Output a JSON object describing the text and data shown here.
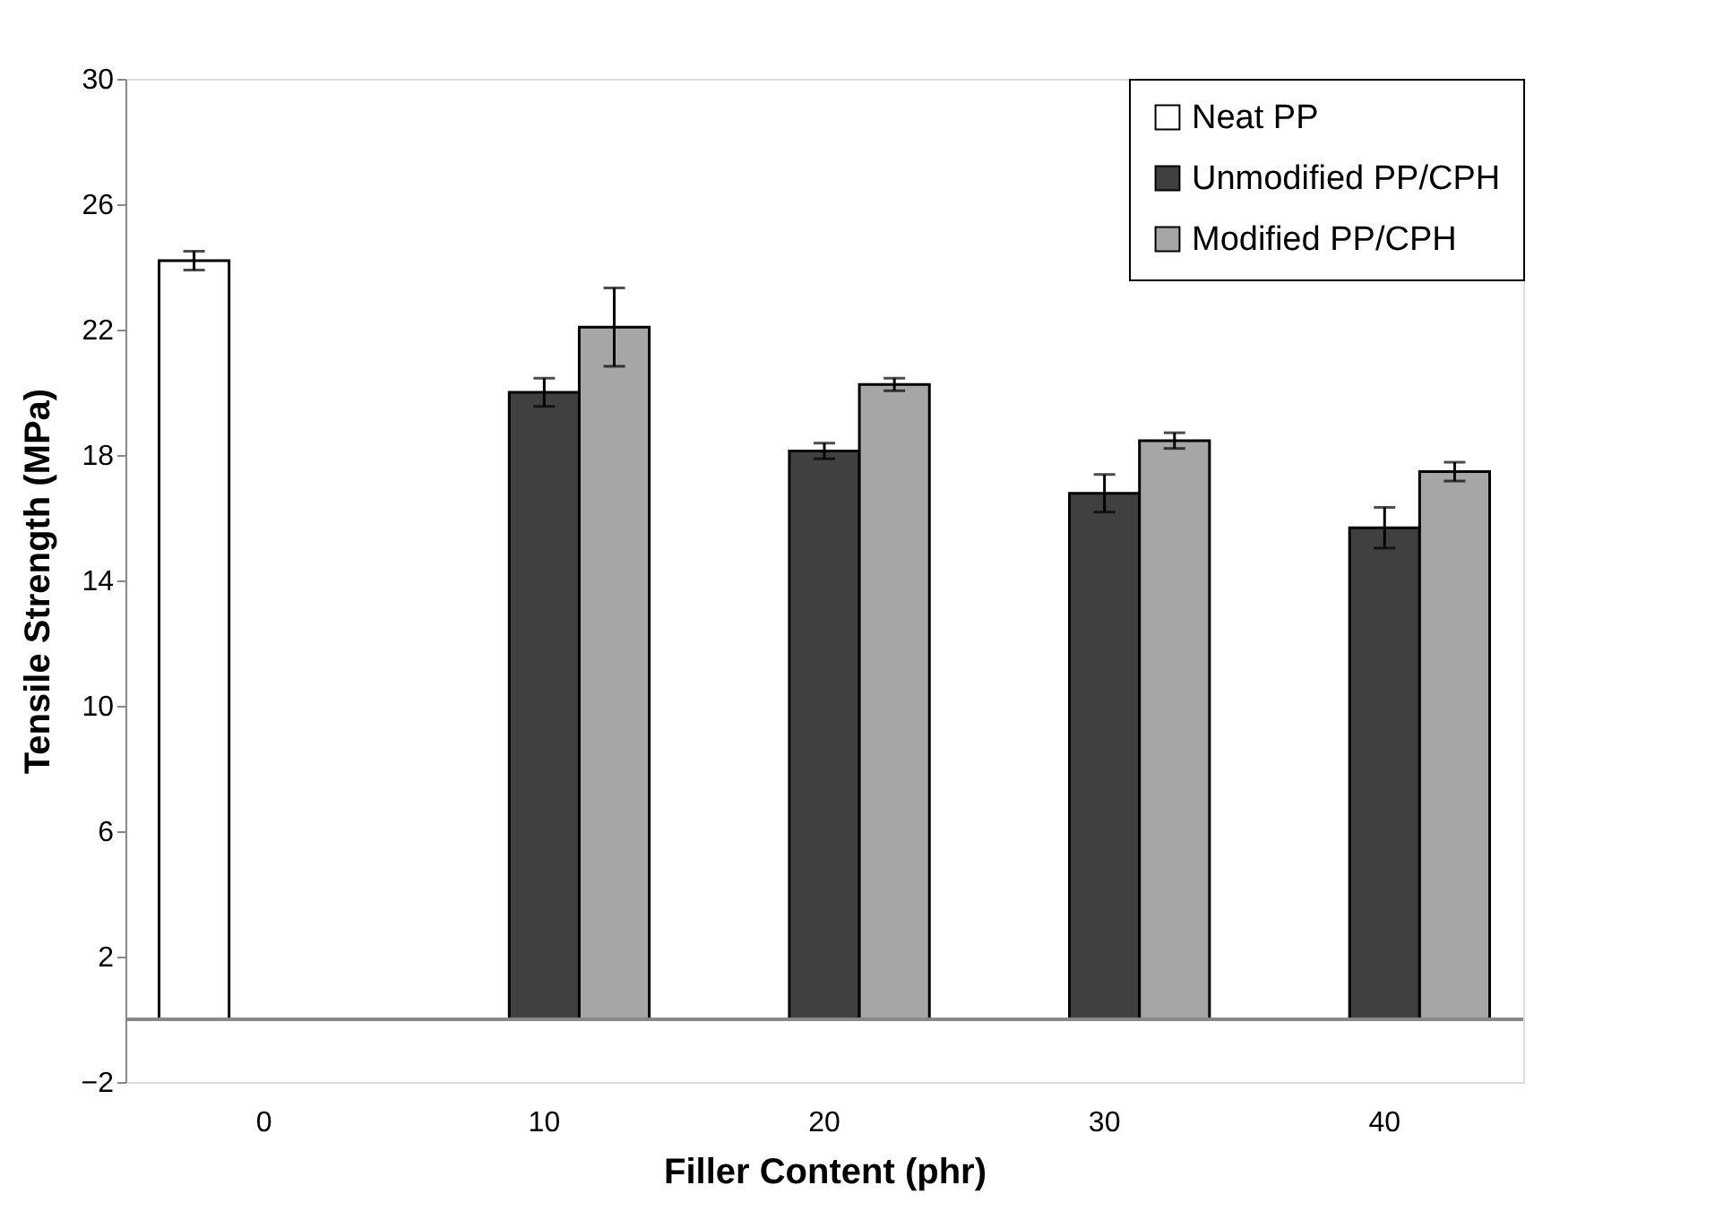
{
  "chart_data": {
    "type": "bar",
    "xlabel": "Filler Content (phr)",
    "ylabel": "Tensile Strength (MPa)",
    "categories": [
      "0",
      "10",
      "20",
      "30",
      "40"
    ],
    "series": [
      {
        "name": "Neat PP",
        "color": "#ffffff",
        "values": [
          24.2,
          null,
          null,
          null,
          null
        ],
        "errors": [
          0.3,
          null,
          null,
          null,
          null
        ]
      },
      {
        "name": "Unmodified PP/CPH",
        "color": "#404040",
        "values": [
          null,
          20.0,
          18.13,
          16.78,
          15.68
        ],
        "errors": [
          null,
          0.45,
          0.25,
          0.6,
          0.65
        ]
      },
      {
        "name": "Modified PP/CPH",
        "color": "#a6a6a6",
        "values": [
          null,
          22.08,
          20.25,
          18.46,
          17.47
        ],
        "errors": [
          null,
          1.25,
          0.2,
          0.25,
          0.3
        ]
      }
    ],
    "ylim": [
      -2,
      30
    ],
    "yticks": [
      -2,
      2,
      6,
      10,
      14,
      18,
      22,
      26,
      30
    ],
    "grid": false,
    "legend": "top right"
  }
}
